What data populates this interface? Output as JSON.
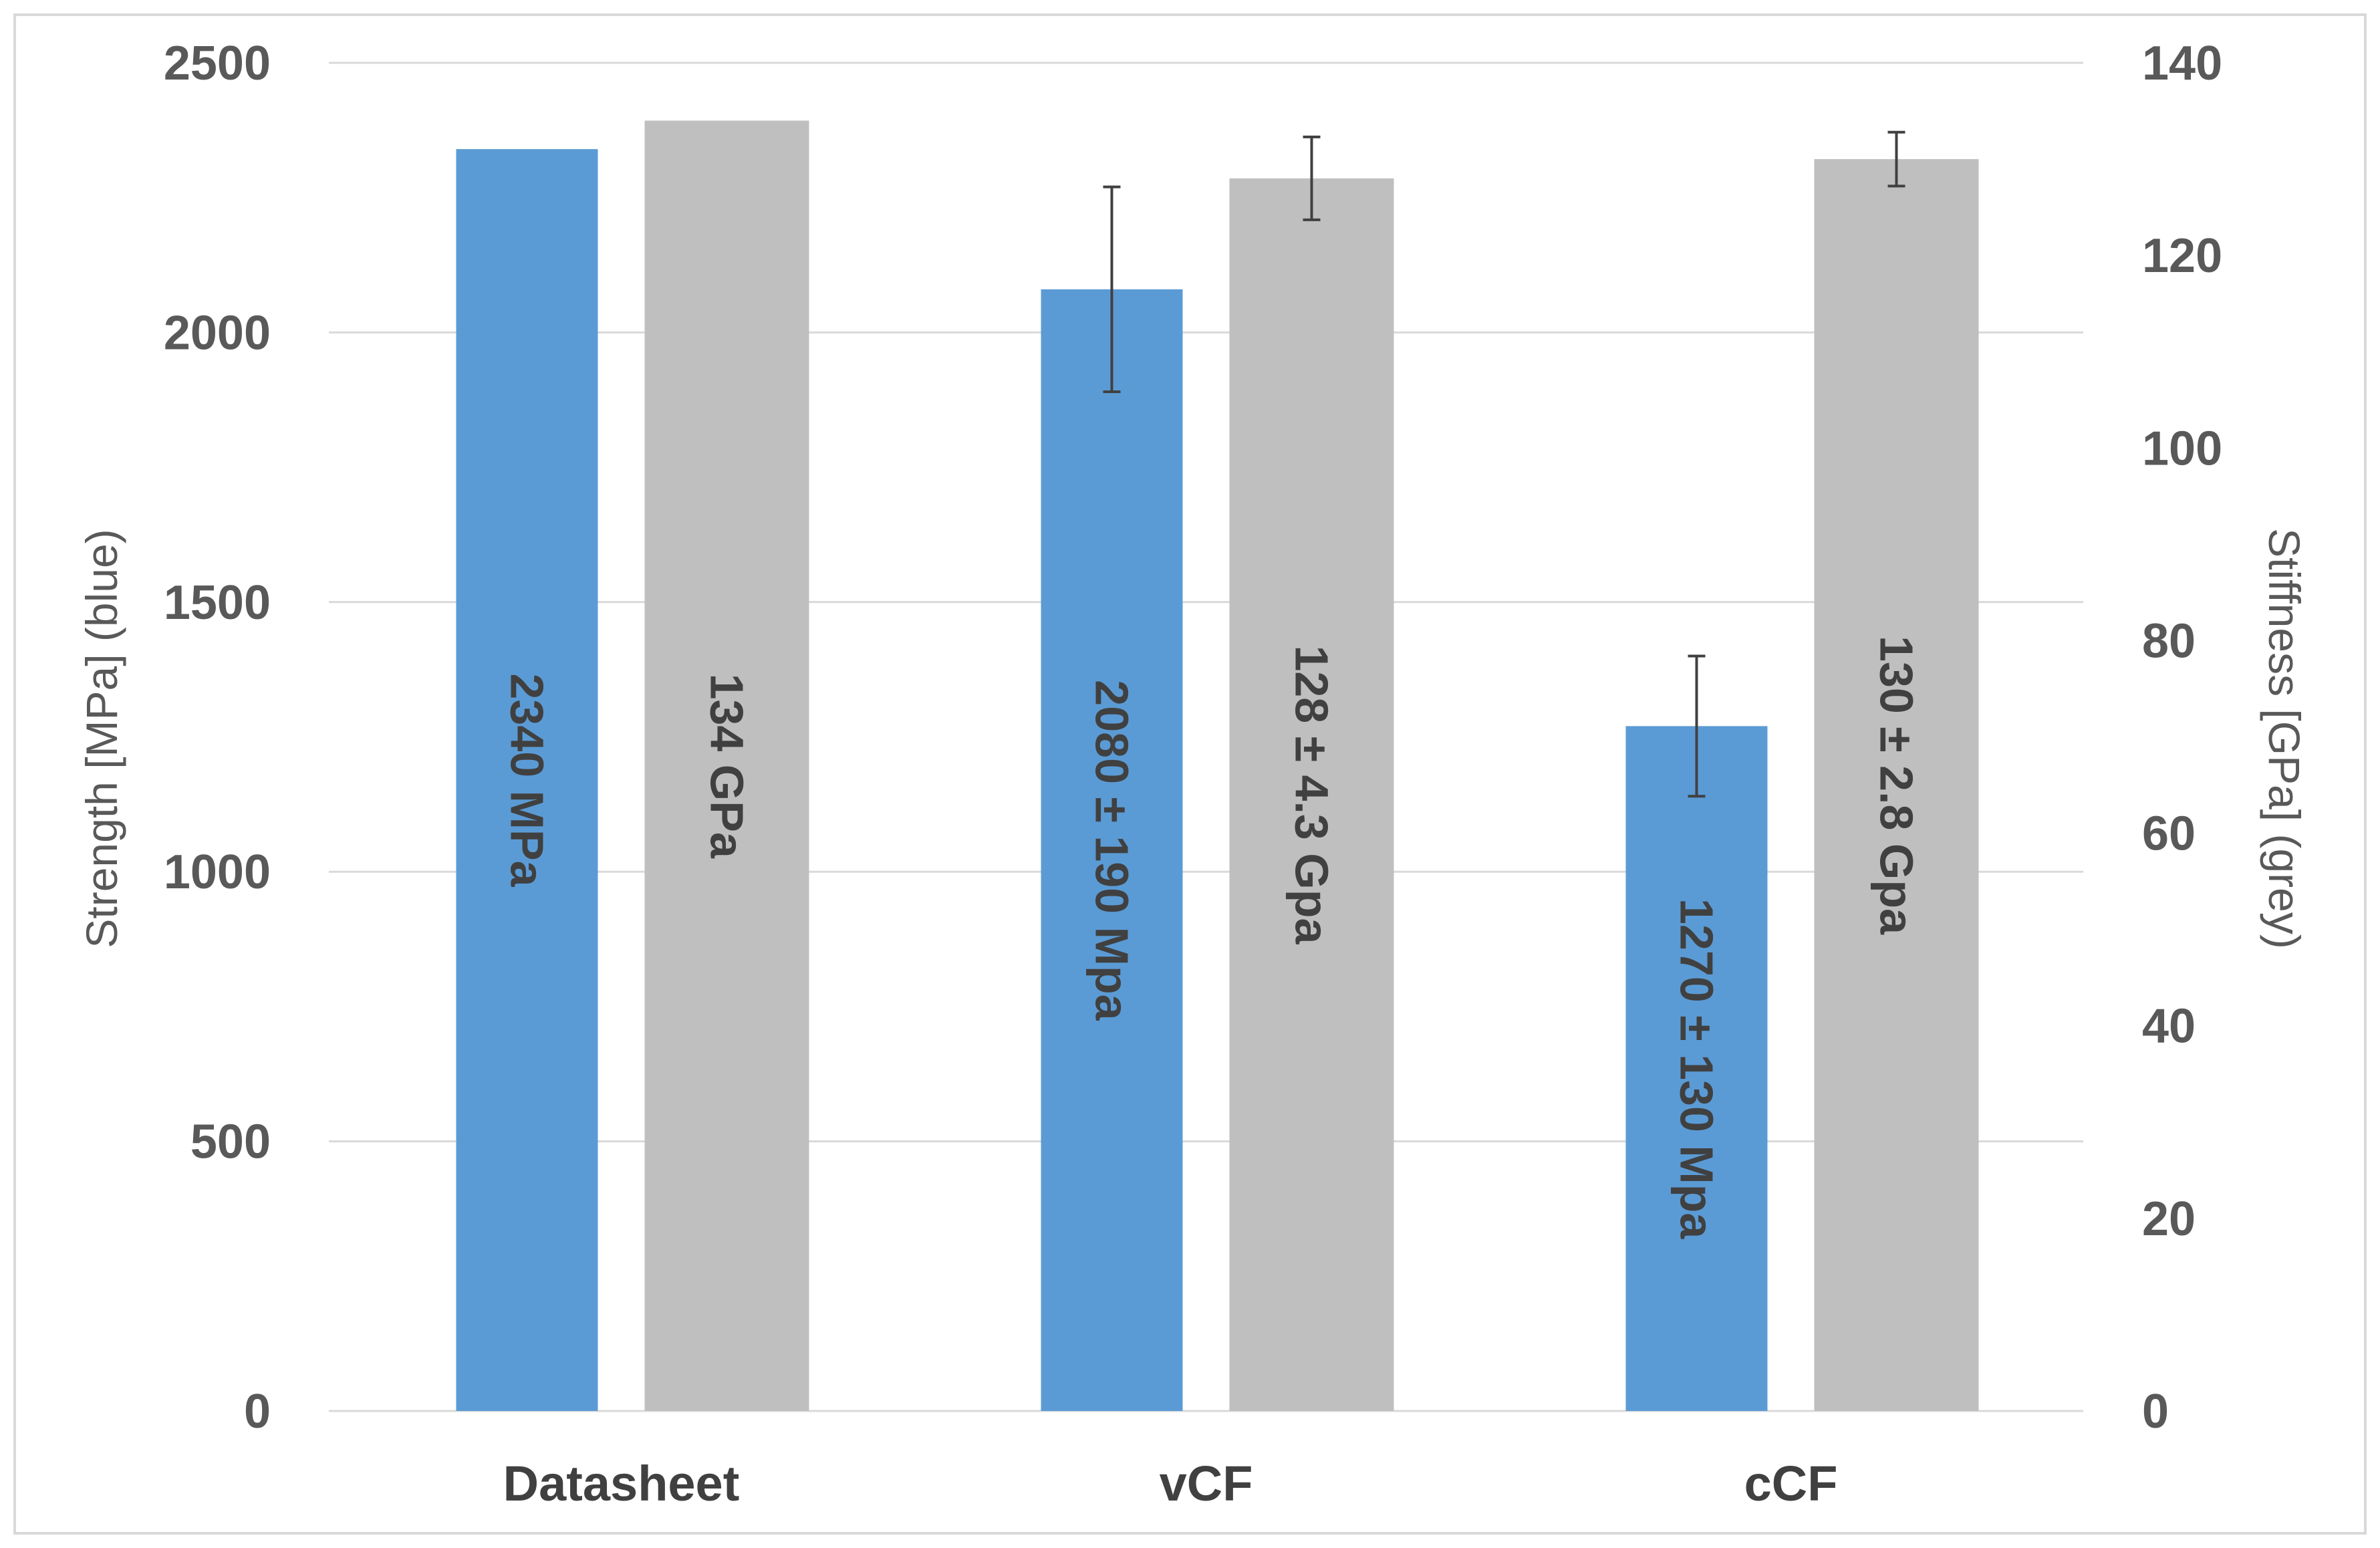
{
  "chart_data": {
    "type": "bar",
    "categories": [
      "Datasheet",
      "vCF",
      "cCF"
    ],
    "series": [
      {
        "axis": "left",
        "color": "#5b9bd5",
        "values": [
          2340,
          2080,
          1270
        ],
        "errors": [
          null,
          190,
          130
        ],
        "labels": [
          "2340 MPa",
          "2080 ± 190 Mpa",
          "1270 ± 130 Mpa"
        ]
      },
      {
        "axis": "right",
        "color": "#bfbfbf",
        "values": [
          134,
          128,
          130
        ],
        "errors": [
          null,
          4.3,
          2.8
        ],
        "labels": [
          "134 GPa",
          "128 ± 4.3 Gpa",
          "130 ± 2.8 Gpa"
        ]
      }
    ],
    "ylabel": "Strength [MPa] (blue)",
    "ylabel_right": "Stiffness [GPa] (grey)",
    "ylim": [
      0,
      2500
    ],
    "ylim_right": [
      0,
      140
    ],
    "yticks": [
      0,
      500,
      1000,
      1500,
      2000,
      2500
    ],
    "yticks_right": [
      0,
      20,
      40,
      60,
      80,
      100,
      120,
      140
    ],
    "grid": true,
    "legend": "none"
  }
}
